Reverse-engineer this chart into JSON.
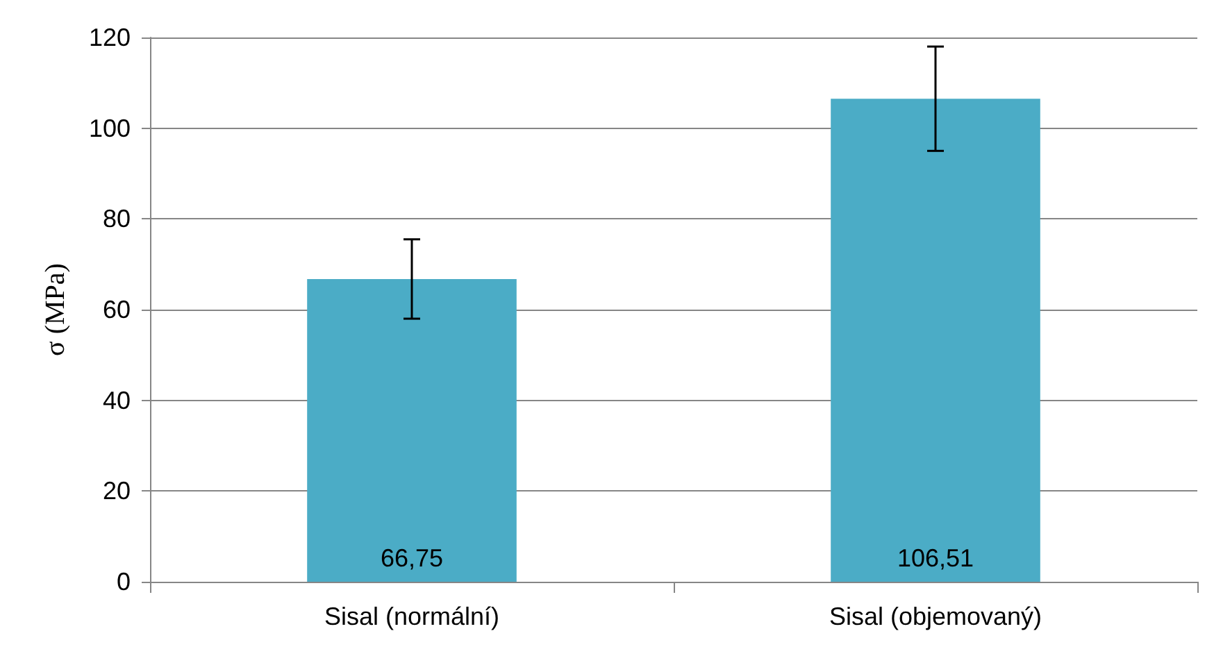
{
  "chart_data": {
    "type": "bar",
    "ylabel": "σ (MPa)",
    "categories": [
      "Sisal (normální)",
      "Sisal (objemovaný)"
    ],
    "values": [
      66.75,
      106.51
    ],
    "color": "#4bacc6",
    "errors": [
      [
        58,
        75.5
      ],
      [
        95,
        118
      ]
    ],
    "value_labels": [
      "66,75",
      "106,51"
    ],
    "ylim": [
      0,
      120
    ],
    "yticks": [
      0,
      20,
      40,
      60,
      80,
      100,
      120
    ],
    "grid": "y"
  }
}
